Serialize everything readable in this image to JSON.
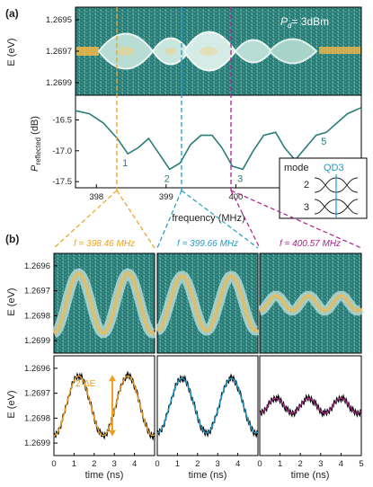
{
  "figure": {
    "panel_a": "(a)",
    "panel_b": "(b)",
    "power_prefix": "P",
    "power_sub": "d",
    "power_value": "= 3dBm"
  },
  "colors": {
    "teal": "#2a7d78",
    "orange": "#f0a020",
    "cyan": "#1e9ccc",
    "magenta": "#b0208a",
    "heat_low": "#2a7d78",
    "heat_mid": "#c8e6dd",
    "heat_high": "#f5b848"
  },
  "inset": {
    "title": "mode",
    "qd_label": "QD3",
    "mode_labels": [
      "2",
      "3"
    ]
  },
  "chart_data": [
    {
      "id": "a_top",
      "type": "heatmap",
      "ylabel": "E (eV)",
      "yticks": [
        "1.2695",
        "1.2697",
        "1.2699"
      ],
      "ylim": [
        1.2694,
        1.27
      ],
      "note": "energy vs frequency, shares x axis with a_bottom"
    },
    {
      "id": "a_bottom",
      "type": "line",
      "xlabel": "frequency (MHz)",
      "ylabel_main": "P",
      "ylabel_sub": "reflected",
      "ylabel_unit": " (dB)",
      "xlim": [
        397.7,
        401.8
      ],
      "ylim": [
        -17.6,
        -16.1
      ],
      "xticks": [
        "398",
        "399",
        "400",
        "401"
      ],
      "yticks": [
        "-16.5",
        "-17.0",
        "-17.5"
      ],
      "x": [
        397.7,
        397.9,
        398.1,
        398.3,
        398.45,
        398.6,
        398.75,
        398.9,
        399.05,
        399.2,
        399.35,
        399.5,
        399.66,
        399.8,
        399.95,
        400.1,
        400.25,
        400.4,
        400.57,
        400.7,
        400.85,
        401.0,
        401.15,
        401.3,
        401.45,
        401.6,
        401.8
      ],
      "y": [
        -16.35,
        -16.4,
        -16.55,
        -16.8,
        -17.05,
        -16.95,
        -16.8,
        -17.05,
        -17.3,
        -17.2,
        -16.9,
        -16.75,
        -16.75,
        -16.95,
        -17.25,
        -17.3,
        -17.0,
        -16.75,
        -16.7,
        -16.95,
        -17.15,
        -16.95,
        -16.75,
        -16.7,
        -16.55,
        -16.4,
        -16.3
      ],
      "minima_labels": [
        "1",
        "2",
        "3",
        "4",
        "5"
      ],
      "minima_x": [
        398.45,
        399.05,
        400.1,
        400.85,
        401.3
      ],
      "minima_y": [
        -17.05,
        -17.3,
        -17.3,
        -17.15,
        -16.7
      ]
    },
    {
      "id": "b_maps",
      "type": "heatmap",
      "ylabel": "E (eV)",
      "yticks": [
        "1.2696",
        "1.2697",
        "1.2698",
        "1.2699"
      ],
      "ylim": [
        1.26955,
        1.26995
      ],
      "freq_labels": [
        "f = 398.46 MHz",
        "f = 399.66 MHz",
        "f = 400.57 MHz"
      ]
    },
    {
      "id": "b_traces",
      "type": "line",
      "xlabel": "time (ns)",
      "ylabel": "E (eV)",
      "xlim": [
        0,
        5
      ],
      "ylim": [
        1.26955,
        1.26995
      ],
      "xticks": [
        "0",
        "1",
        "2",
        "3",
        "4"
      ],
      "xticks_last": [
        "0",
        "1",
        "2",
        "3",
        "4",
        "5"
      ],
      "yticks": [
        "1.2696",
        "1.2697",
        "1.2698",
        "1.2699"
      ],
      "annotation": "2·ΔE",
      "series": [
        {
          "center": 1.26975,
          "amplitude": 0.00012,
          "period": 2.45,
          "phase": 0.0
        },
        {
          "center": 1.26975,
          "amplitude": 0.00011,
          "period": 2.45,
          "phase": 0.0
        },
        {
          "center": 1.26975,
          "amplitude": 3e-05,
          "period": 1.6,
          "phase": 0.0
        }
      ]
    }
  ]
}
